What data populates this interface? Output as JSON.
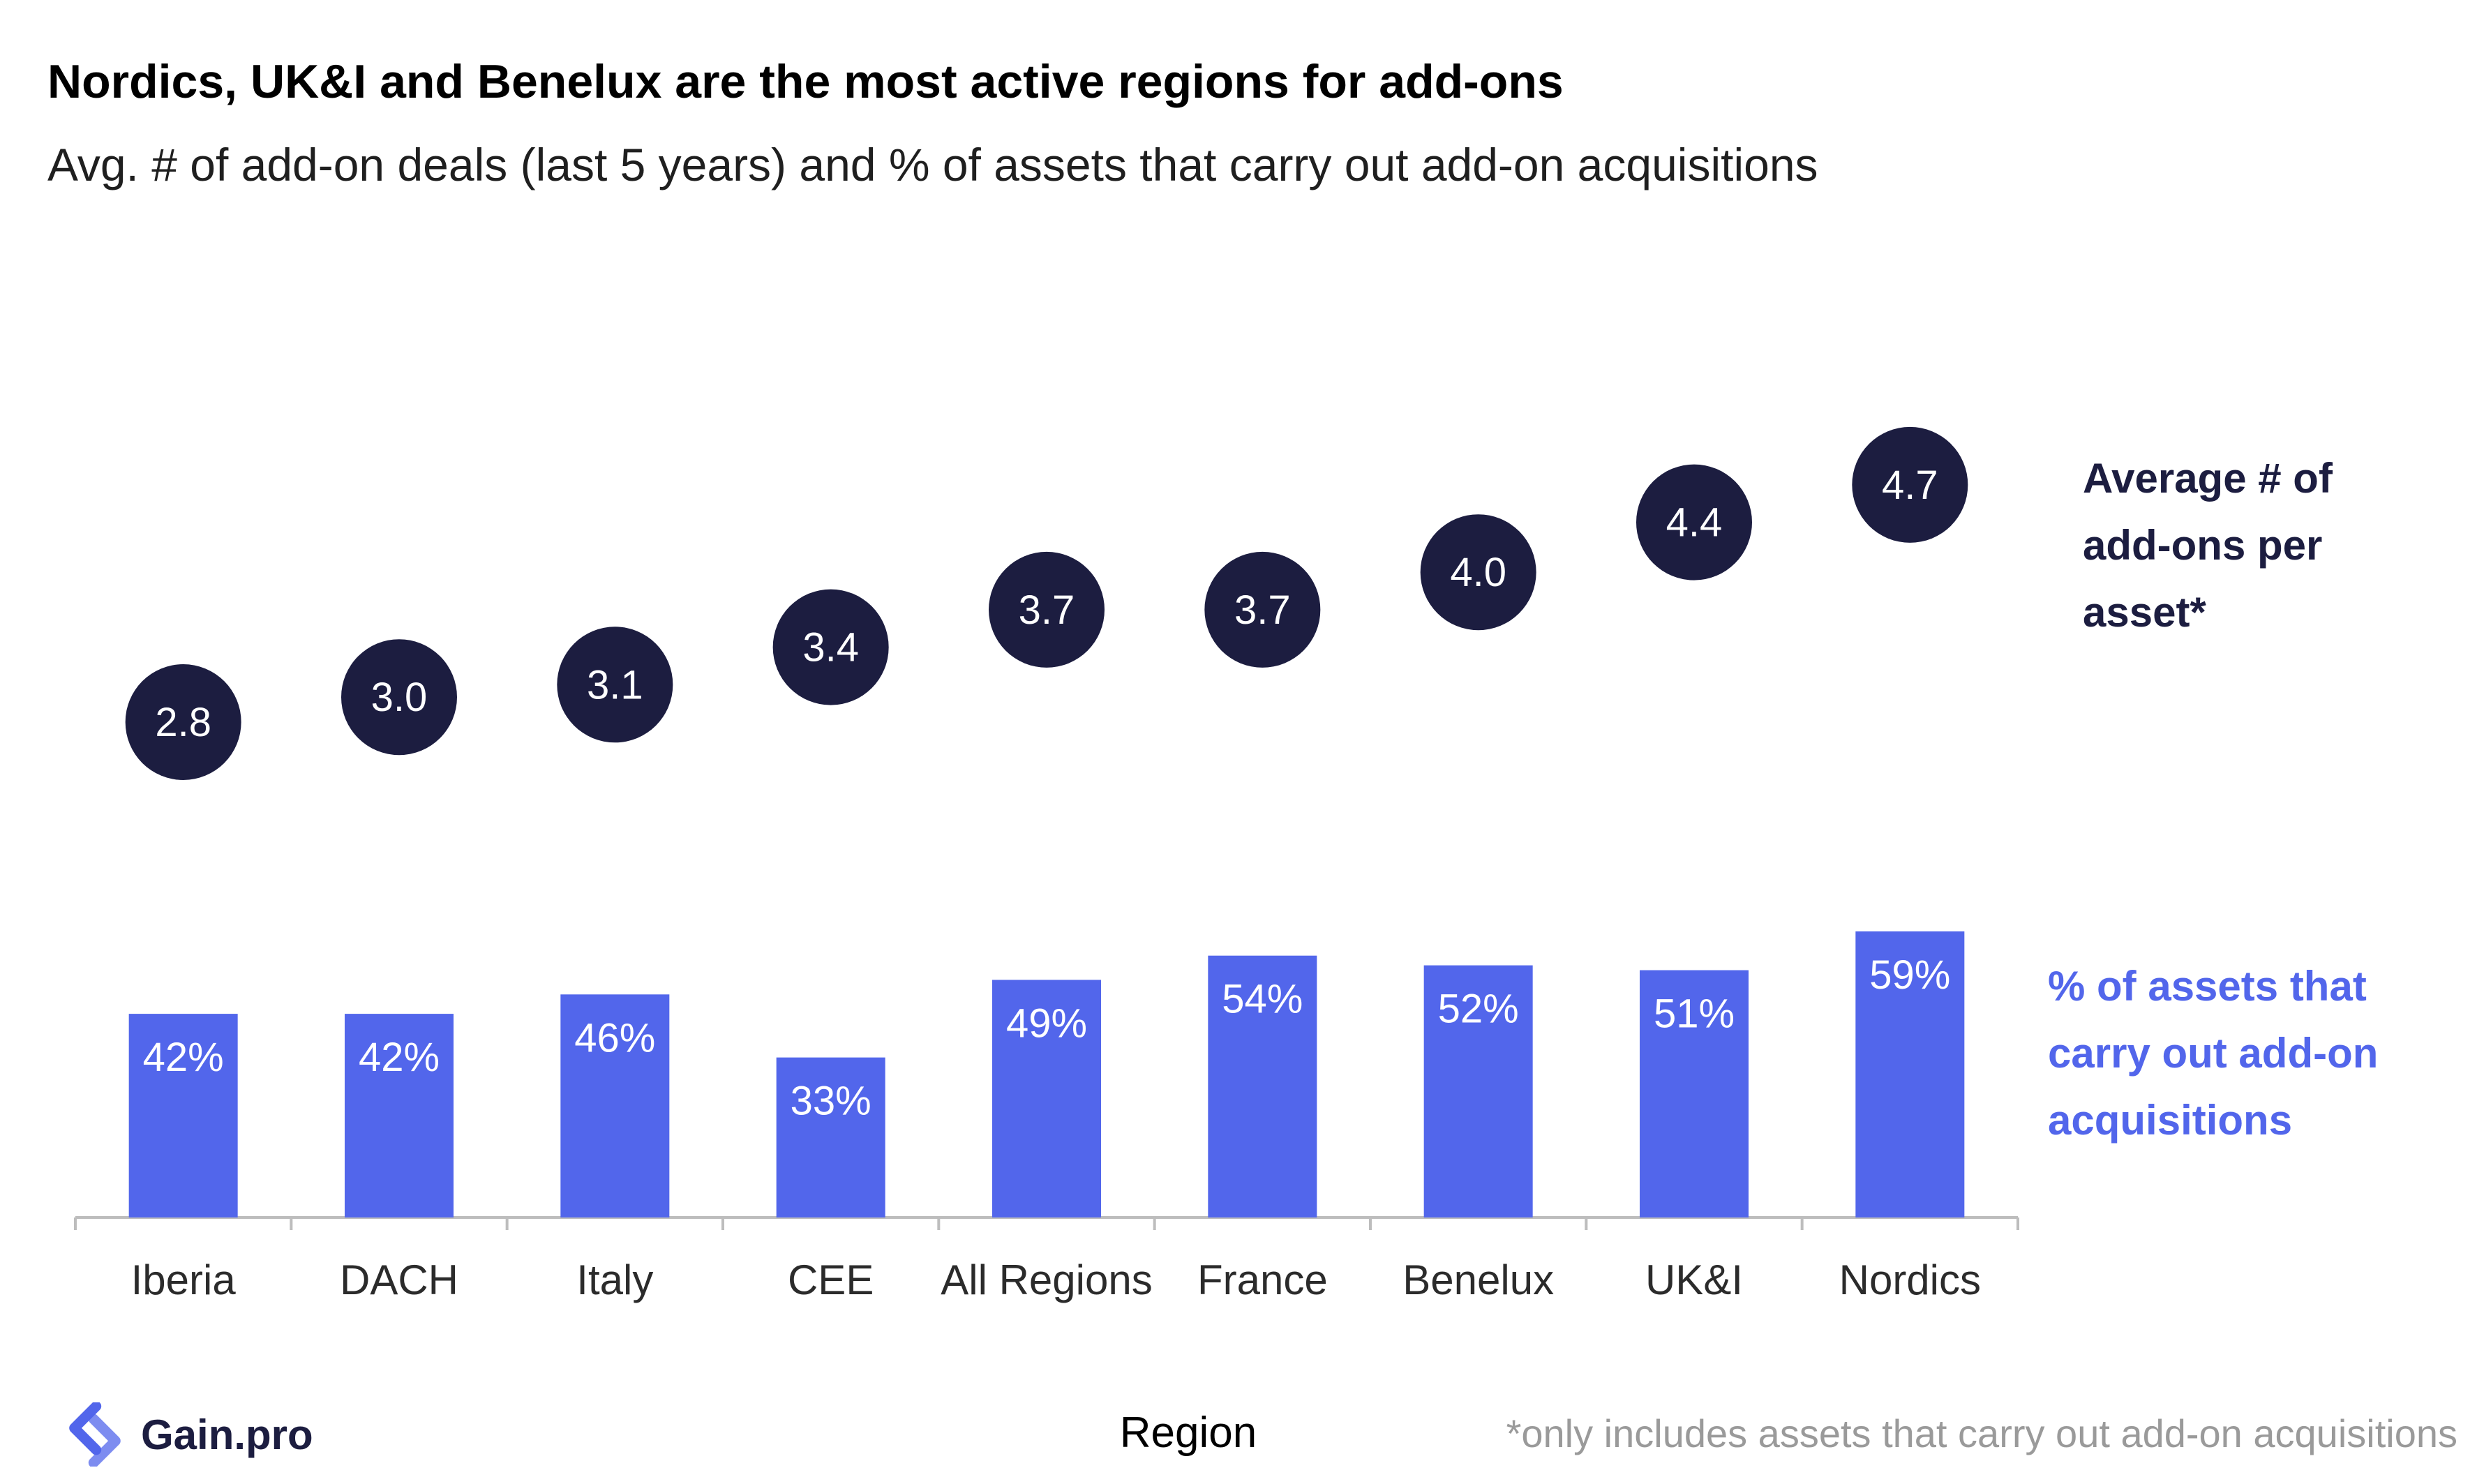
{
  "header": {
    "title": "Nordics, UK&I and Benelux are the most active regions for add-ons",
    "subtitle": "Avg. # of add-on deals (last 5 years) and % of assets that carry out add-on acquisitions"
  },
  "legend": {
    "avg_line1": "Average # of",
    "avg_line2": "add-ons per",
    "avg_line3": "asset*",
    "pct_line1": "% of assets that",
    "pct_line2": "carry out add-on",
    "pct_line3": "acquisitions"
  },
  "footer": {
    "logo_text": "Gain.pro",
    "footnote": "*only includes assets that carry out add-on acquisitions"
  },
  "colors": {
    "bar": "#5266eb",
    "dot": "#1c1d40",
    "axis": "#bdbdbd"
  },
  "chart_data": {
    "type": "bar",
    "xlabel": "Region",
    "categories": [
      "Iberia",
      "DACH",
      "Italy",
      "CEE",
      "All Regions",
      "France",
      "Benelux",
      "UK&I",
      "Nordics"
    ],
    "series": [
      {
        "name": "% of assets that carry out add-on acquisitions",
        "type": "bar",
        "values": [
          42,
          42,
          46,
          33,
          49,
          54,
          52,
          51,
          59
        ],
        "labels": [
          "42%",
          "42%",
          "46%",
          "33%",
          "49%",
          "54%",
          "52%",
          "51%",
          "59%"
        ]
      },
      {
        "name": "Average # of add-ons per asset*",
        "type": "dot",
        "values": [
          2.8,
          3.0,
          3.1,
          3.4,
          3.7,
          3.7,
          4.0,
          4.4,
          4.7
        ],
        "labels": [
          "2.8",
          "3.0",
          "3.1",
          "3.4",
          "3.7",
          "3.7",
          "4.0",
          "4.4",
          "4.7"
        ]
      }
    ]
  }
}
